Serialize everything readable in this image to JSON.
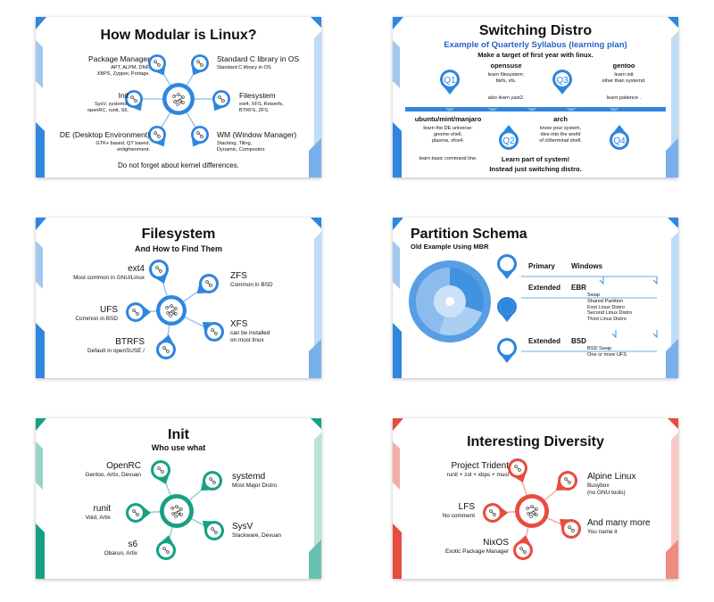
{
  "slides": [
    {
      "title": "How Modular is Linux?",
      "items": [
        {
          "label": "Package Manager",
          "desc": "APT, ALPM, DNF,\nXBPS, Zypper, Portage."
        },
        {
          "label": "Init",
          "desc": "SysV, systemd,\nopenRC, runit, S6."
        },
        {
          "label": "DE (Desktop Environment)",
          "desc": "GTK+ based, QT based,\nenlightenment."
        },
        {
          "label": "Standard C library in OS",
          "desc": "Standard C library in OS"
        },
        {
          "label": "Filesystem",
          "desc": "ext4, XFS, Reiserfs,\nBTRFS, ZFS."
        },
        {
          "label": "WM (Window Manager)",
          "desc": "Stacking, Tiling,\nDynamic, Compositor."
        }
      ],
      "footer": "Do not forget about kernel differences.",
      "accent": "#2e86de"
    },
    {
      "title": "Switching Distro",
      "subtitle": "Example of Quarterly Syllabus (learning plan)",
      "subtitle2": "Make a target of first year with linux.",
      "quarters": [
        "Q1",
        "Q2",
        "Q3",
        "Q4"
      ],
      "steps": [
        {
          "name": "ubuntu/mint/manjaro",
          "desc": "learn the DE universe:\ngnome-shell,\nplasma, xfce4.",
          "note": "learn basic command line."
        },
        {
          "name": "opensuse",
          "desc": "learn filesystem:\nbtrfs, xfs.",
          "note": "also learn yast2."
        },
        {
          "name": "arch",
          "desc": "know your system,\ndive into the world\nof cli/terminal shell."
        },
        {
          "name": "gentoo",
          "desc": "learn init\nother than systemd.",
          "note": "learn patience   ."
        }
      ],
      "footer1": "Learn part of system!",
      "footer2": "Instead just switching distro.",
      "accent": "#2e86de"
    },
    {
      "title": "Filesystem",
      "subtitle": "And How to Find Them",
      "items": [
        {
          "label": "ext4",
          "desc": "Most common in GNU/Linux"
        },
        {
          "label": "UFS",
          "desc": "Common in BSD"
        },
        {
          "label": "BTRFS",
          "desc": "Default in openSUSE /"
        },
        {
          "label": "ZFS",
          "desc": "Common in BSD"
        },
        {
          "label": "XFS",
          "desc": "can be installed\non most linux"
        }
      ],
      "accent": "#2e86de"
    },
    {
      "title": "Partition Schema",
      "subtitle": "Old Example Using MBR",
      "rows": [
        {
          "type": "Primary",
          "name": "Windows",
          "details": ""
        },
        {
          "type": "Extended",
          "name": "EBR",
          "details": "Swap\nShared Partition\nFirst Linux Distro\nSecond Linux Distro\nThird Linux Distro"
        },
        {
          "type": "Extended",
          "name": "BSD",
          "details": "BSD Swap\nOne or more UFS"
        }
      ],
      "accent": "#2e86de"
    },
    {
      "title": "Init",
      "subtitle": "Who use what",
      "items": [
        {
          "label": "OpenRC",
          "desc": "Gentoo, Artix, Devuan"
        },
        {
          "label": "runit",
          "desc": "Void, Artix"
        },
        {
          "label": "s6",
          "desc": "Obarun, Artix"
        },
        {
          "label": "systemd",
          "desc": "Most Major Distro"
        },
        {
          "label": "SysV",
          "desc": "Slackware, Devuan"
        }
      ],
      "accent": "#16a085"
    },
    {
      "title": "Interesting Diversity",
      "items": [
        {
          "label": "Project Trident",
          "desc": "runit + zol + xbps + musl"
        },
        {
          "label": "LFS",
          "desc": "No comment"
        },
        {
          "label": "NixOS",
          "desc": "Exotic Package Manager"
        },
        {
          "label": "Alpine Linux",
          "desc": "Busybox\n(no GNU tools)"
        },
        {
          "label": "And many more",
          "desc": "You name it"
        }
      ],
      "accent": "#e74c3c"
    }
  ]
}
